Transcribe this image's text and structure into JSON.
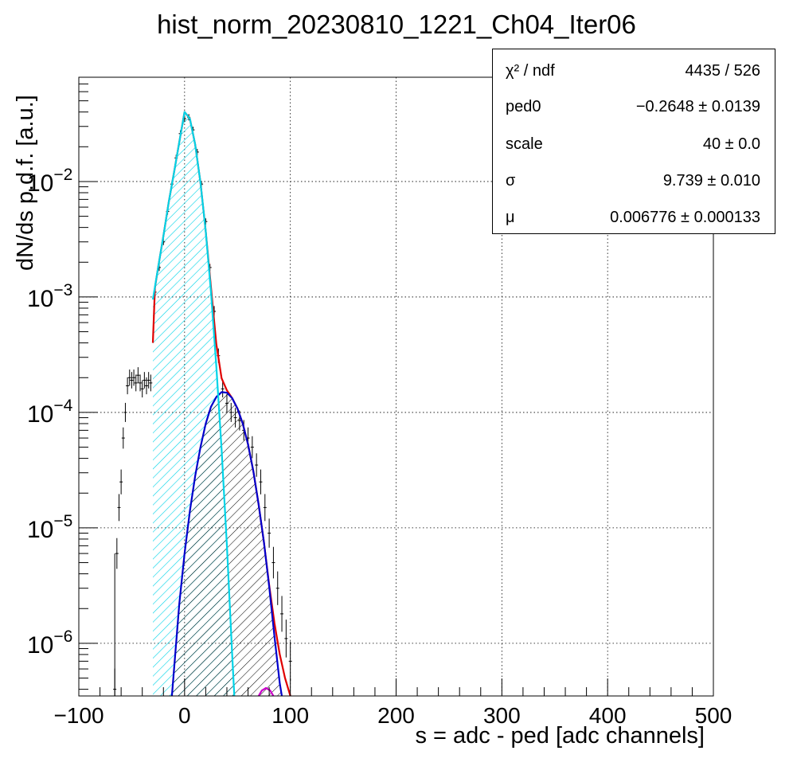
{
  "chart_data": {
    "type": "line",
    "title": "hist_norm_20230810_1221_Ch04_Iter06",
    "xlabel": "s = adc - ped [adc channels]",
    "ylabel": "dN/ds p.d.f. [a.u.]",
    "xlim": [
      -100,
      500
    ],
    "ylim": [
      3.5e-07,
      0.08
    ],
    "yscale": "log",
    "grid": true,
    "x_ticks": [
      -100,
      0,
      100,
      200,
      300,
      400,
      500
    ],
    "y_ticks": [
      {
        "value": 1e-06,
        "mantissa": "10",
        "exp": "−6"
      },
      {
        "value": 1e-05,
        "mantissa": "10",
        "exp": "−5"
      },
      {
        "value": 0.0001,
        "mantissa": "10",
        "exp": "−4"
      },
      {
        "value": 0.001,
        "mantissa": "10",
        "exp": "−3"
      },
      {
        "value": 0.01,
        "mantissa": "10",
        "exp": "−2"
      }
    ],
    "fit_params": {
      "ped0": -0.2648,
      "scale": 40,
      "sigma": 9.739,
      "mu": 0.006776
    },
    "series": [
      {
        "kind": "histogram",
        "color": "#000000",
        "points": [
          [
            -66,
            4e-07
          ],
          [
            -64,
            6e-06
          ],
          [
            -62,
            1.5e-05
          ],
          [
            -60,
            2.5e-05
          ],
          [
            -58,
            6e-05
          ],
          [
            -56,
            0.0001
          ],
          [
            -54,
            0.00017
          ],
          [
            -52,
            0.0002
          ],
          [
            -50,
            0.00019
          ],
          [
            -48,
            0.0002
          ],
          [
            -46,
            0.00018
          ],
          [
            -44,
            0.00021
          ],
          [
            -42,
            0.00018
          ],
          [
            -40,
            0.00016
          ],
          [
            -38,
            0.00019
          ],
          [
            -36,
            0.00017
          ],
          [
            -34,
            0.00019
          ],
          [
            -32,
            0.00018
          ],
          [
            -28,
            0.0011
          ],
          [
            -24,
            0.0018
          ],
          [
            -20,
            0.003
          ],
          [
            -16,
            0.0055
          ],
          [
            -12,
            0.0095
          ],
          [
            -8,
            0.016
          ],
          [
            -4,
            0.026
          ],
          [
            0,
            0.035
          ],
          [
            4,
            0.036
          ],
          [
            8,
            0.028
          ],
          [
            12,
            0.018
          ],
          [
            16,
            0.0095
          ],
          [
            20,
            0.0045
          ],
          [
            24,
            0.0018
          ],
          [
            28,
            0.00075
          ],
          [
            32,
            0.00031
          ],
          [
            36,
            0.00016
          ],
          [
            40,
            0.00012
          ],
          [
            44,
            0.0001
          ],
          [
            48,
            9e-05
          ],
          [
            52,
            8.5e-05
          ],
          [
            56,
            7e-05
          ],
          [
            60,
            6e-05
          ],
          [
            64,
            5e-05
          ],
          [
            68,
            3.5e-05
          ],
          [
            72,
            2.5e-05
          ],
          [
            76,
            1.5e-05
          ],
          [
            80,
            9e-06
          ],
          [
            84,
            5e-06
          ],
          [
            88,
            3e-06
          ],
          [
            92,
            1.8e-06
          ],
          [
            96,
            1.1e-06
          ],
          [
            100,
            7e-07
          ]
        ]
      },
      {
        "kind": "pedestal",
        "color": "#00d4e8",
        "points": [
          [
            -30,
            0.00095
          ],
          [
            -25,
            0.0018
          ],
          [
            -20,
            0.0034
          ],
          [
            -15,
            0.0066
          ],
          [
            -10,
            0.012
          ],
          [
            -5,
            0.022
          ],
          [
            0,
            0.04
          ],
          [
            5,
            0.035
          ],
          [
            10,
            0.021
          ],
          [
            15,
            0.0098
          ],
          [
            20,
            0.0037
          ],
          [
            25,
            0.0011
          ],
          [
            30,
            0.00025
          ],
          [
            35,
            4.8e-05
          ],
          [
            40,
            7e-06
          ],
          [
            45,
            8e-07
          ],
          [
            47,
            3.5e-07
          ]
        ]
      },
      {
        "kind": "signal",
        "color": "#0000cc",
        "points": [
          [
            -12,
            3.5e-07
          ],
          [
            -5,
            2.2e-06
          ],
          [
            0,
            6e-06
          ],
          [
            5,
            1.4e-05
          ],
          [
            10,
            2.8e-05
          ],
          [
            15,
            5e-05
          ],
          [
            20,
            8e-05
          ],
          [
            25,
            0.000112
          ],
          [
            30,
            0.000136
          ],
          [
            35,
            0.00015
          ],
          [
            40,
            0.000148
          ],
          [
            45,
            0.000133
          ],
          [
            50,
            0.000108
          ],
          [
            55,
            8e-05
          ],
          [
            60,
            5.3e-05
          ],
          [
            65,
            3.1e-05
          ],
          [
            70,
            1.6e-05
          ],
          [
            75,
            7.5e-06
          ],
          [
            80,
            3.1e-06
          ],
          [
            85,
            1.15e-06
          ],
          [
            90,
            4.5e-07
          ],
          [
            92,
            3.5e-07
          ]
        ]
      },
      {
        "kind": "total",
        "color": "#e00000",
        "points": [
          [
            -30,
            0.0004
          ],
          [
            -28,
            0.0012
          ],
          [
            -25,
            0.0018
          ],
          [
            -20,
            0.0034
          ],
          [
            -15,
            0.0066
          ],
          [
            -10,
            0.012
          ],
          [
            -5,
            0.022
          ],
          [
            0,
            0.04
          ],
          [
            5,
            0.035
          ],
          [
            10,
            0.021
          ],
          [
            15,
            0.0098
          ],
          [
            20,
            0.0037
          ],
          [
            25,
            0.00121
          ],
          [
            30,
            0.00039
          ],
          [
            35,
            0.000198
          ],
          [
            40,
            0.000155
          ],
          [
            45,
            0.000133
          ],
          [
            50,
            0.000108
          ],
          [
            55,
            8e-05
          ],
          [
            60,
            5.3e-05
          ],
          [
            65,
            3.1e-05
          ],
          [
            70,
            1.6e-05
          ],
          [
            75,
            7.5e-06
          ],
          [
            80,
            3.2e-06
          ],
          [
            85,
            1.5e-06
          ],
          [
            90,
            8e-07
          ],
          [
            95,
            5e-07
          ],
          [
            100,
            3.5e-07
          ]
        ]
      },
      {
        "kind": "second_peak",
        "color": "#cc00cc",
        "points": [
          [
            70,
            3.5e-07
          ],
          [
            73,
            3.9e-07
          ],
          [
            77,
            4.1e-07
          ],
          [
            81,
            3.9e-07
          ],
          [
            84,
            3.5e-07
          ]
        ]
      }
    ],
    "fill_regions": [
      {
        "series": "pedestal",
        "from": -30,
        "to": 47,
        "color": "#00d4e8",
        "hatch": "diagonal"
      },
      {
        "series": "signal",
        "from": -12,
        "to": 92,
        "color": "#000000",
        "hatch": "diagonal"
      }
    ]
  },
  "stats": {
    "rows": [
      {
        "name": "χ² / ndf",
        "value": "4435 / 526"
      },
      {
        "name": "ped0",
        "value": "−0.2648 ± 0.0139"
      },
      {
        "name": "scale",
        "value": "40 ± 0.0"
      },
      {
        "name": "σ",
        "value": "9.739 ± 0.010"
      },
      {
        "name": "μ",
        "value": "0.006776 ± 0.000133"
      }
    ]
  }
}
